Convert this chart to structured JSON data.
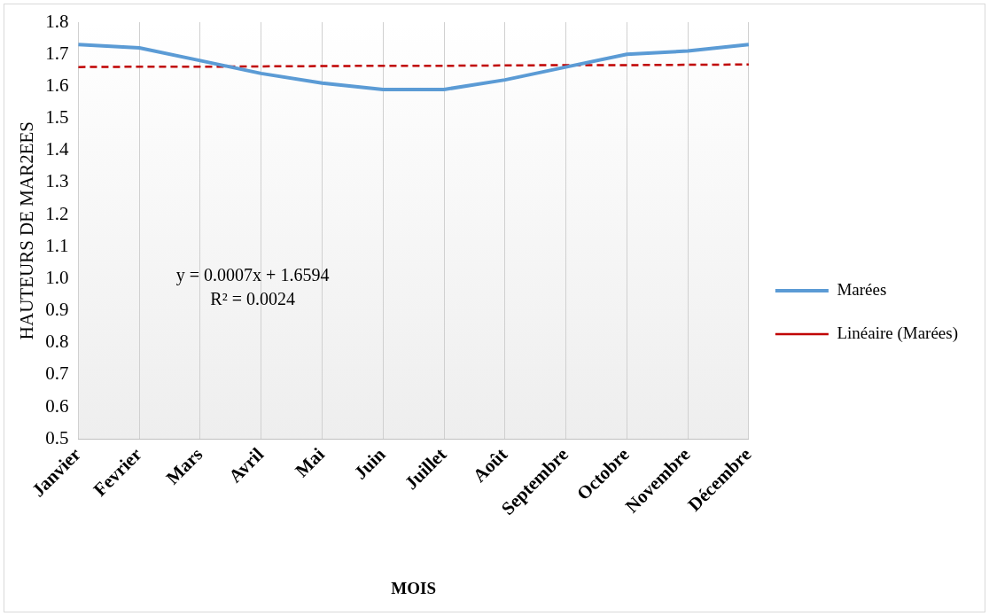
{
  "chart_data": {
    "type": "line",
    "xlabel": "MOIS",
    "ylabel": "HAUTEURS DE MAR2EES",
    "categories": [
      "Janvier",
      "Fevrier",
      "Mars",
      "Avril",
      "Mai",
      "Juin",
      "Juillet",
      "Août",
      "Septembre",
      "Octobre",
      "Novembre",
      "Décembre"
    ],
    "series": [
      {
        "name": "Marées",
        "color": "#5b9bd5",
        "line_style": "solid",
        "values": [
          1.73,
          1.72,
          1.68,
          1.64,
          1.61,
          1.59,
          1.59,
          1.62,
          1.66,
          1.7,
          1.71,
          1.73
        ]
      },
      {
        "name": "Linéaire (Marées)",
        "color": "#c00000",
        "line_style": "dashed",
        "values": [
          1.66,
          1.661,
          1.661,
          1.662,
          1.663,
          1.664,
          1.664,
          1.665,
          1.666,
          1.666,
          1.667,
          1.668
        ]
      }
    ],
    "ylim": [
      0.5,
      1.8
    ],
    "yticks": [
      {
        "value": 0.5,
        "label": "0.5"
      },
      0.6,
      0.7,
      0.8,
      0.9,
      {
        "value": 1.0,
        "label": "1.0"
      },
      1.1,
      1.2,
      1.3,
      1.4,
      1.5,
      1.6,
      1.7,
      1.8
    ],
    "grid": "x",
    "legend": "right",
    "marker": "none",
    "annotations": [
      "y = 0.0007x + 1.6594",
      "R² = 0.0024"
    ]
  }
}
